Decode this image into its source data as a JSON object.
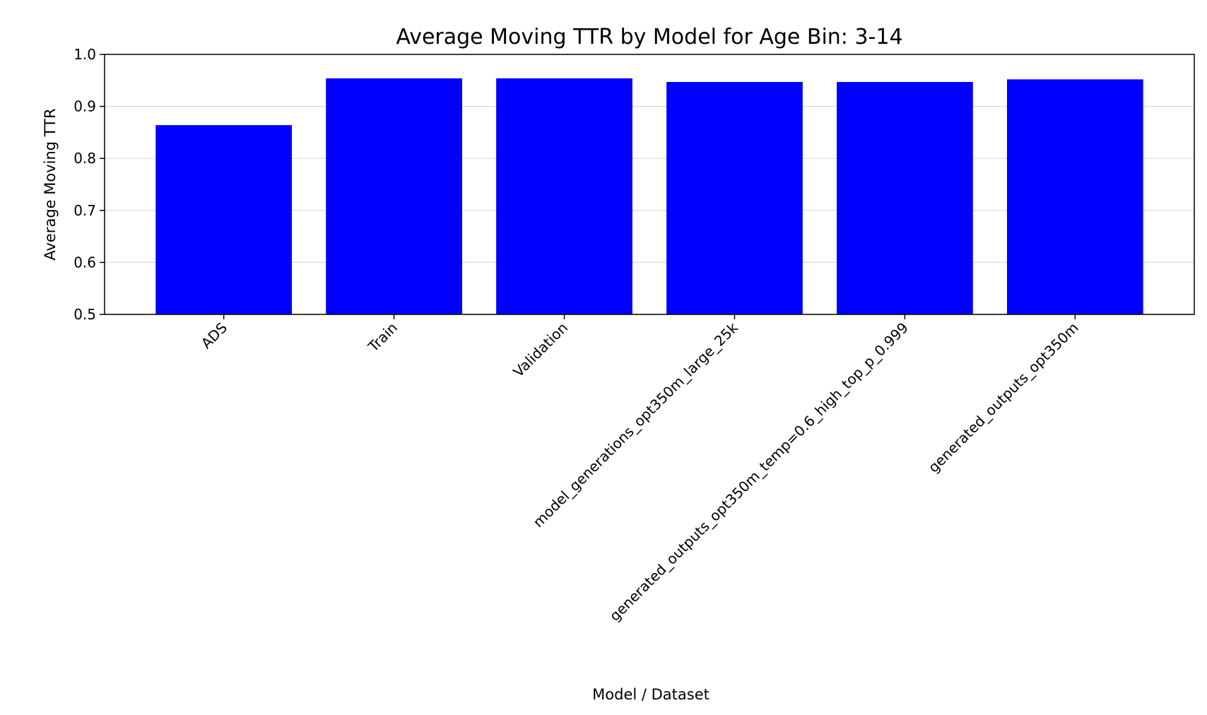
{
  "chart_data": {
    "type": "bar",
    "title": "Average Moving TTR by Model for Age Bin: 3-14",
    "xlabel": "Model / Dataset",
    "ylabel": "Average Moving TTR",
    "categories": [
      "ADS",
      "Train",
      "Validation",
      "model_generations_opt350m_large_25k",
      "generated_outputs_opt350m_temp=0.6_high_top_p_0.999",
      "generated_outputs_opt350m"
    ],
    "values": [
      0.864,
      0.954,
      0.954,
      0.947,
      0.947,
      0.952
    ],
    "ylim": [
      0.5,
      1.0
    ],
    "yticks": [
      "0.5",
      "0.6",
      "0.7",
      "0.8",
      "0.9",
      "1.0"
    ],
    "grid": "y",
    "bar_color": "#0000ff"
  }
}
